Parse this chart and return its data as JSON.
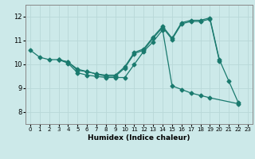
{
  "title": "",
  "xlabel": "Humidex (Indice chaleur)",
  "ylabel": "",
  "xlim": [
    -0.5,
    23.5
  ],
  "ylim": [
    7.5,
    12.5
  ],
  "yticks": [
    8,
    9,
    10,
    11,
    12
  ],
  "xticks": [
    0,
    1,
    2,
    3,
    4,
    5,
    6,
    7,
    8,
    9,
    10,
    11,
    12,
    13,
    14,
    15,
    16,
    17,
    18,
    19,
    20,
    21,
    22,
    23
  ],
  "bg_color": "#cce9e9",
  "line_color": "#1a7a6e",
  "grid_color": "#b8d8d8",
  "line1_x": [
    0,
    1,
    2,
    3,
    4,
    5,
    6,
    7,
    8,
    9,
    10,
    11,
    12,
    13,
    14,
    15,
    16,
    17,
    18,
    19,
    20,
    21,
    22
  ],
  "line1_y": [
    10.6,
    10.3,
    10.2,
    10.2,
    10.1,
    9.8,
    9.7,
    9.6,
    9.55,
    9.55,
    9.9,
    10.5,
    10.65,
    11.15,
    11.6,
    11.1,
    11.75,
    11.85,
    11.85,
    11.95,
    10.2,
    9.3,
    8.4
  ],
  "line2_x": [
    3,
    4,
    5,
    6,
    7,
    8,
    9,
    10,
    11,
    12,
    13,
    14,
    15,
    16,
    17,
    18,
    19,
    20
  ],
  "line2_y": [
    10.2,
    10.1,
    9.75,
    9.7,
    9.6,
    9.5,
    9.5,
    9.85,
    10.45,
    10.6,
    11.1,
    11.55,
    11.05,
    11.7,
    11.8,
    11.8,
    11.9,
    10.15
  ],
  "line3_x": [
    3,
    4,
    5,
    6,
    7,
    8,
    9,
    10,
    11,
    12,
    13,
    14,
    15,
    16,
    17,
    18,
    19,
    22
  ],
  "line3_y": [
    10.2,
    10.05,
    9.65,
    9.55,
    9.5,
    9.45,
    9.45,
    9.45,
    10.0,
    10.55,
    10.95,
    11.45,
    9.1,
    8.95,
    8.8,
    8.7,
    8.6,
    8.35
  ],
  "marker": "D",
  "markersize": 2.5,
  "linewidth": 0.9
}
